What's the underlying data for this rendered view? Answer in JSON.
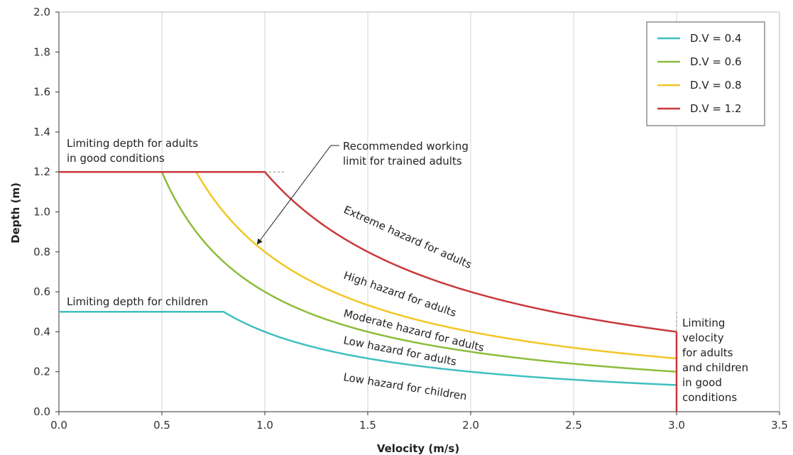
{
  "chart_data": {
    "type": "line",
    "title": "",
    "xlabel": "Velocity (m/s)",
    "ylabel": "Depth (m)",
    "xlim": [
      0,
      3.5
    ],
    "ylim": [
      0,
      2.0
    ],
    "x_ticks": [
      "0.0",
      "0.5",
      "1.0",
      "1.5",
      "2.0",
      "2.5",
      "3.0",
      "3.5"
    ],
    "y_ticks": [
      "0.0",
      "0.2",
      "0.4",
      "0.6",
      "0.8",
      "1.0",
      "1.2",
      "1.4",
      "1.6",
      "1.8",
      "2.0"
    ],
    "grid": "vertical",
    "legend_position": "top-right",
    "max_adult_depth": 1.2,
    "max_child_depth": 0.5,
    "limiting_velocity": 3.0,
    "series": [
      {
        "name": "D.V = 0.4",
        "dv": 0.4,
        "color": "#3fbfc0",
        "depth_cap": 0.5
      },
      {
        "name": "D.V = 0.6",
        "dv": 0.6,
        "color": "#8cbd3a",
        "depth_cap": 1.2
      },
      {
        "name": "D.V = 0.8",
        "dv": 0.8,
        "color": "#f2c624",
        "depth_cap": 1.2
      },
      {
        "name": "D.V = 1.2",
        "dv": 1.2,
        "color": "#c9383a",
        "depth_cap": 1.2
      }
    ],
    "annotations": {
      "adult_depth": [
        "Limiting depth for adults",
        "in good conditions"
      ],
      "child_depth": "Limiting depth for children",
      "working_limit": [
        "Recommended working",
        "limit for trained adults"
      ],
      "extreme": "Extreme hazard for adults",
      "high": "High hazard for adults",
      "moderate": "Moderate hazard for adults",
      "low_adults": "Low hazard for adults",
      "low_children": "Low hazard for children",
      "limiting_velocity": [
        "Limiting",
        "velocity",
        "for adults",
        "and children",
        "in good",
        "conditions"
      ]
    }
  }
}
